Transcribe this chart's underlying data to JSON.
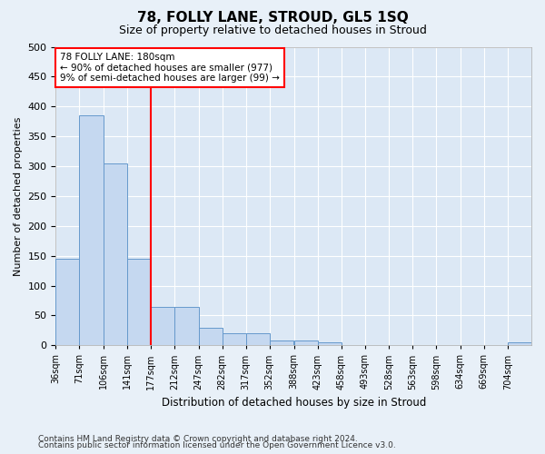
{
  "title": "78, FOLLY LANE, STROUD, GL5 1SQ",
  "subtitle": "Size of property relative to detached houses in Stroud",
  "xlabel": "Distribution of detached houses by size in Stroud",
  "ylabel": "Number of detached properties",
  "bar_color": "#c5d8f0",
  "bar_edge_color": "#6699cc",
  "background_color": "#dce8f5",
  "grid_color": "#ffffff",
  "fig_bg_color": "#e8f0f8",
  "red_line_x": 177,
  "annotation_text": "78 FOLLY LANE: 180sqm\n← 90% of detached houses are smaller (977)\n9% of semi-detached houses are larger (99) →",
  "footnote1": "Contains HM Land Registry data © Crown copyright and database right 2024.",
  "footnote2": "Contains public sector information licensed under the Open Government Licence v3.0.",
  "bin_edges": [
    36,
    71,
    106,
    141,
    177,
    212,
    247,
    282,
    317,
    352,
    388,
    423,
    458,
    493,
    528,
    563,
    598,
    634,
    669,
    704,
    739
  ],
  "bar_heights": [
    145,
    385,
    305,
    145,
    65,
    65,
    30,
    20,
    20,
    8,
    8,
    5,
    0,
    0,
    0,
    0,
    0,
    0,
    0,
    5
  ],
  "ylim": [
    0,
    500
  ],
  "yticks": [
    0,
    50,
    100,
    150,
    200,
    250,
    300,
    350,
    400,
    450,
    500
  ]
}
